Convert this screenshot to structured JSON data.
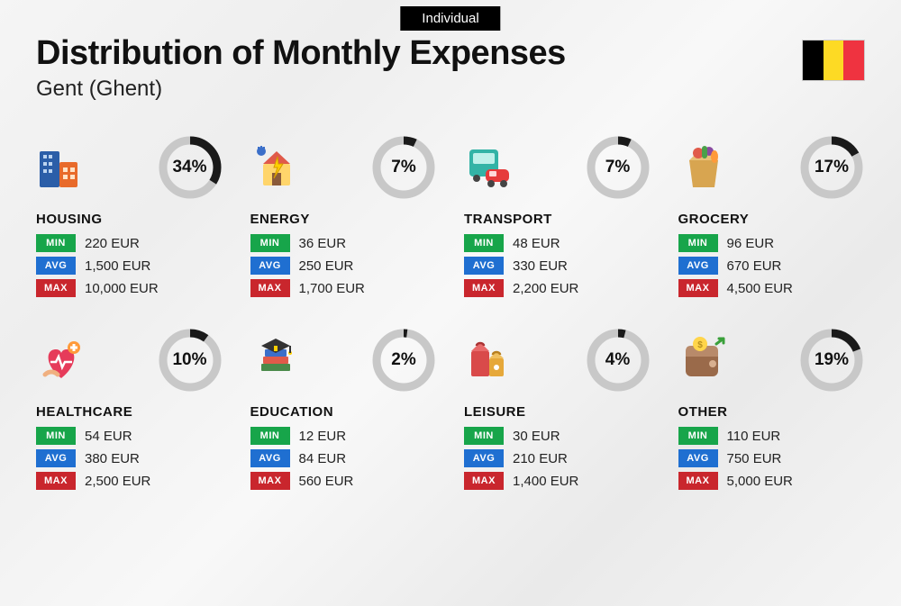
{
  "tag": "Individual",
  "title": "Distribution of Monthly Expenses",
  "subtitle": "Gent (Ghent)",
  "flag_colors": [
    "#000000",
    "#fdda24",
    "#ef3340"
  ],
  "ring": {
    "track_color": "#c8c8c8",
    "arc_color": "#1a1a1a",
    "stroke_width": 9,
    "radius": 30
  },
  "badges": {
    "min": {
      "label": "MIN",
      "bg": "#17a54a"
    },
    "avg": {
      "label": "AVG",
      "bg": "#1f6fd1"
    },
    "max": {
      "label": "MAX",
      "bg": "#c9262d"
    }
  },
  "categories": [
    {
      "name": "HOUSING",
      "percent": 34,
      "min": "220 EUR",
      "avg": "1,500 EUR",
      "max": "10,000 EUR",
      "icon": "housing-icon"
    },
    {
      "name": "ENERGY",
      "percent": 7,
      "min": "36 EUR",
      "avg": "250 EUR",
      "max": "1,700 EUR",
      "icon": "energy-icon"
    },
    {
      "name": "TRANSPORT",
      "percent": 7,
      "min": "48 EUR",
      "avg": "330 EUR",
      "max": "2,200 EUR",
      "icon": "transport-icon"
    },
    {
      "name": "GROCERY",
      "percent": 17,
      "min": "96 EUR",
      "avg": "670 EUR",
      "max": "4,500 EUR",
      "icon": "grocery-icon"
    },
    {
      "name": "HEALTHCARE",
      "percent": 10,
      "min": "54 EUR",
      "avg": "380 EUR",
      "max": "2,500 EUR",
      "icon": "healthcare-icon"
    },
    {
      "name": "EDUCATION",
      "percent": 2,
      "min": "12 EUR",
      "avg": "84 EUR",
      "max": "560 EUR",
      "icon": "education-icon"
    },
    {
      "name": "LEISURE",
      "percent": 4,
      "min": "30 EUR",
      "avg": "210 EUR",
      "max": "1,400 EUR",
      "icon": "leisure-icon"
    },
    {
      "name": "OTHER",
      "percent": 19,
      "min": "110 EUR",
      "avg": "750 EUR",
      "max": "5,000 EUR",
      "icon": "other-icon"
    }
  ]
}
